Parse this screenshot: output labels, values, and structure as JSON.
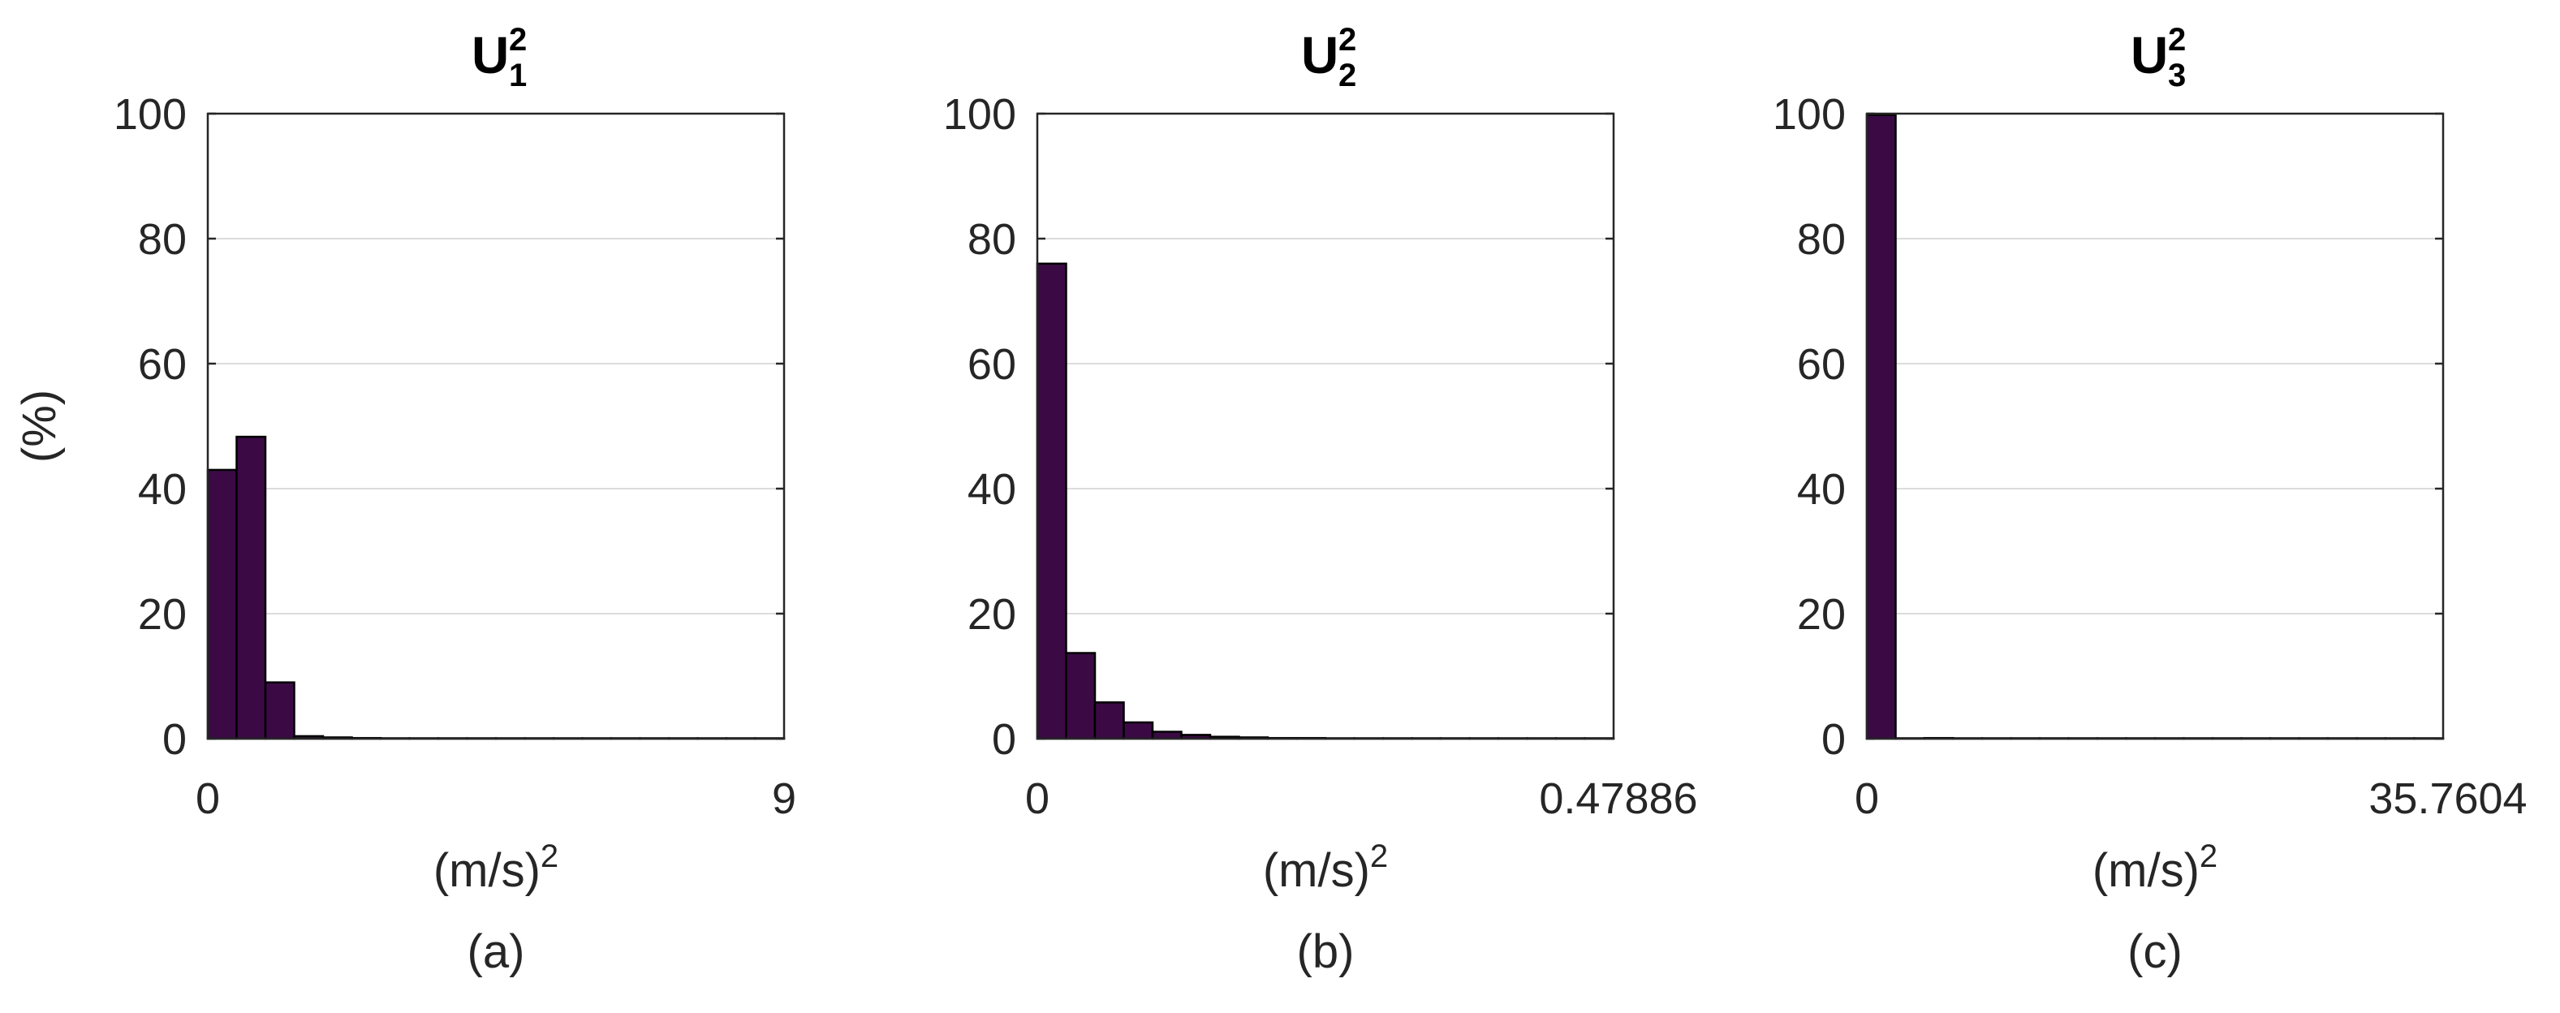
{
  "figure": {
    "ylabel": "(%)"
  },
  "chart_data": [
    {
      "type": "bar",
      "panel_label": "(a)",
      "title": "U",
      "title_sup": "2",
      "title_sub": "1",
      "xlabel_base": "(m/s)",
      "xlabel_sup": "2",
      "x_tick_labels": [
        "0",
        "9"
      ],
      "y_tick_labels": [
        "0",
        "20",
        "40",
        "60",
        "80",
        "100"
      ],
      "xlim": [
        0,
        9
      ],
      "ylim": [
        0,
        100
      ],
      "grid": "horizontal",
      "bin_count": 20,
      "values": [
        43,
        48.3,
        9,
        0.4,
        0.2,
        0.1,
        0.05,
        0.05,
        0.05,
        0.05,
        0.05,
        0.05,
        0.05,
        0.05,
        0.05,
        0.05,
        0.05,
        0.05,
        0.05,
        0.05
      ],
      "bar_color": "#3b0a45"
    },
    {
      "type": "bar",
      "panel_label": "(b)",
      "title": "U",
      "title_sup": "2",
      "title_sub": "2",
      "xlabel_base": "(m/s)",
      "xlabel_sup": "2",
      "x_tick_labels": [
        "0",
        "0.47886"
      ],
      "y_tick_labels": [
        "0",
        "20",
        "40",
        "60",
        "80",
        "100"
      ],
      "xlim": [
        0,
        0.47886
      ],
      "ylim": [
        0,
        100
      ],
      "grid": "horizontal",
      "bin_count": 20,
      "values": [
        76,
        13.7,
        5.8,
        2.6,
        1.1,
        0.6,
        0.3,
        0.2,
        0.1,
        0.1,
        0.05,
        0.05,
        0.05,
        0.05,
        0.05,
        0.05,
        0.05,
        0.05,
        0.05,
        0.05
      ],
      "bar_color": "#3b0a45"
    },
    {
      "type": "bar",
      "panel_label": "(c)",
      "title": "U",
      "title_sup": "2",
      "title_sub": "3",
      "xlabel_base": "(m/s)",
      "xlabel_sup": "2",
      "x_tick_labels": [
        "0",
        "35.7604"
      ],
      "y_tick_labels": [
        "0",
        "20",
        "40",
        "60",
        "80",
        "100"
      ],
      "xlim": [
        0,
        35.7604
      ],
      "ylim": [
        0,
        100
      ],
      "grid": "horizontal",
      "bin_count": 20,
      "values": [
        99.8,
        0.05,
        0.1,
        0.05,
        0.05,
        0.05,
        0.05,
        0.05,
        0.05,
        0.05,
        0.05,
        0.05,
        0.05,
        0.05,
        0.05,
        0.05,
        0.05,
        0.05,
        0.05,
        0.05
      ],
      "bar_color": "#3b0a45"
    }
  ]
}
